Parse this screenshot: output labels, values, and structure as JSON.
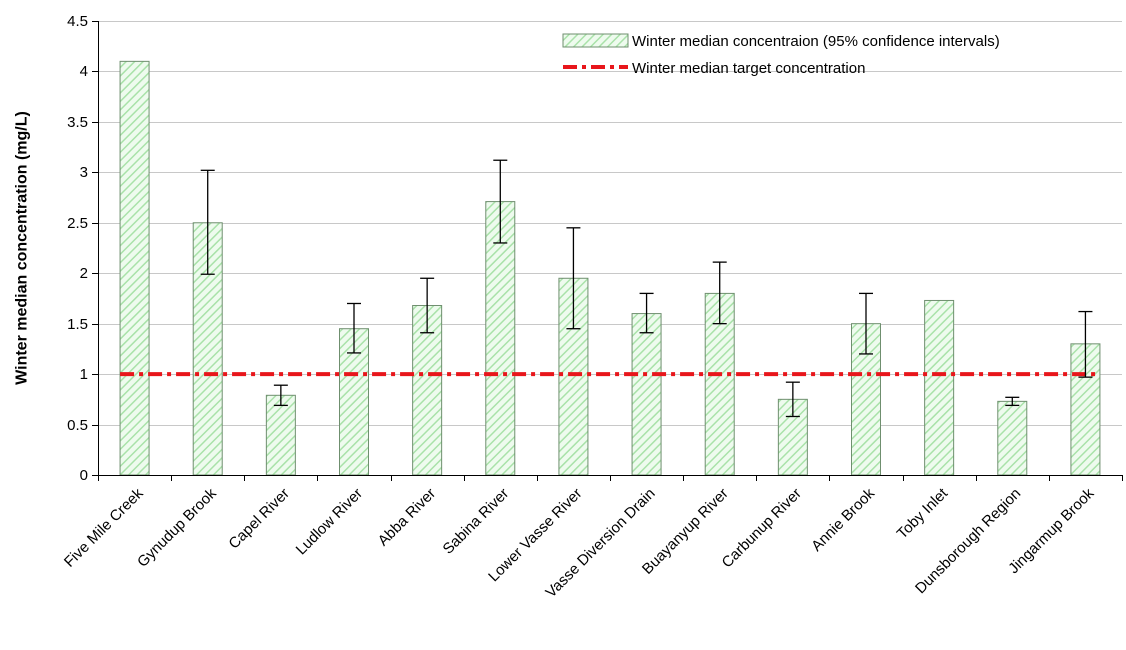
{
  "chart_data": {
    "type": "bar",
    "title": "",
    "xlabel": "",
    "ylabel": "Winter median concentration (mg/L)",
    "ylim": [
      0,
      4.5
    ],
    "yticks": [
      0,
      0.5,
      1,
      1.5,
      2,
      2.5,
      3,
      3.5,
      4,
      4.5
    ],
    "ytick_labels": [
      "0",
      "0.5",
      "1",
      "1.5",
      "2",
      "2.5",
      "3",
      "3.5",
      "4",
      "4.5"
    ],
    "grid": true,
    "legend_position": "top-right",
    "categories": [
      "Five Mile Creek",
      "Gynudup Brook",
      "Capel River",
      "Ludlow River",
      "Abba River",
      "Sabina River",
      "Lower Vasse River",
      "Vasse Diversion Drain",
      "Buayanyup River",
      "Carbunup River",
      "Annie Brook",
      "Toby Inlet",
      "Dunsborough Region",
      "Jingarmup Brook"
    ],
    "series": [
      {
        "name": "Winter median concentraion (95% confidence intervals)",
        "values": [
          4.1,
          2.5,
          0.79,
          1.45,
          1.68,
          2.71,
          1.95,
          1.6,
          1.8,
          0.75,
          1.5,
          1.73,
          0.73,
          1.3
        ],
        "error_low": [
          null,
          1.99,
          0.69,
          1.21,
          1.41,
          2.3,
          1.45,
          1.41,
          1.5,
          0.58,
          1.2,
          null,
          0.69,
          0.97
        ],
        "error_high": [
          null,
          3.02,
          0.89,
          1.7,
          1.95,
          3.12,
          2.45,
          1.8,
          2.11,
          0.92,
          1.8,
          null,
          0.77,
          1.62
        ],
        "color": "#ccf2cc"
      }
    ],
    "target": {
      "name": "Winter median target concentration",
      "value": 1,
      "color": "#e8161b"
    }
  }
}
